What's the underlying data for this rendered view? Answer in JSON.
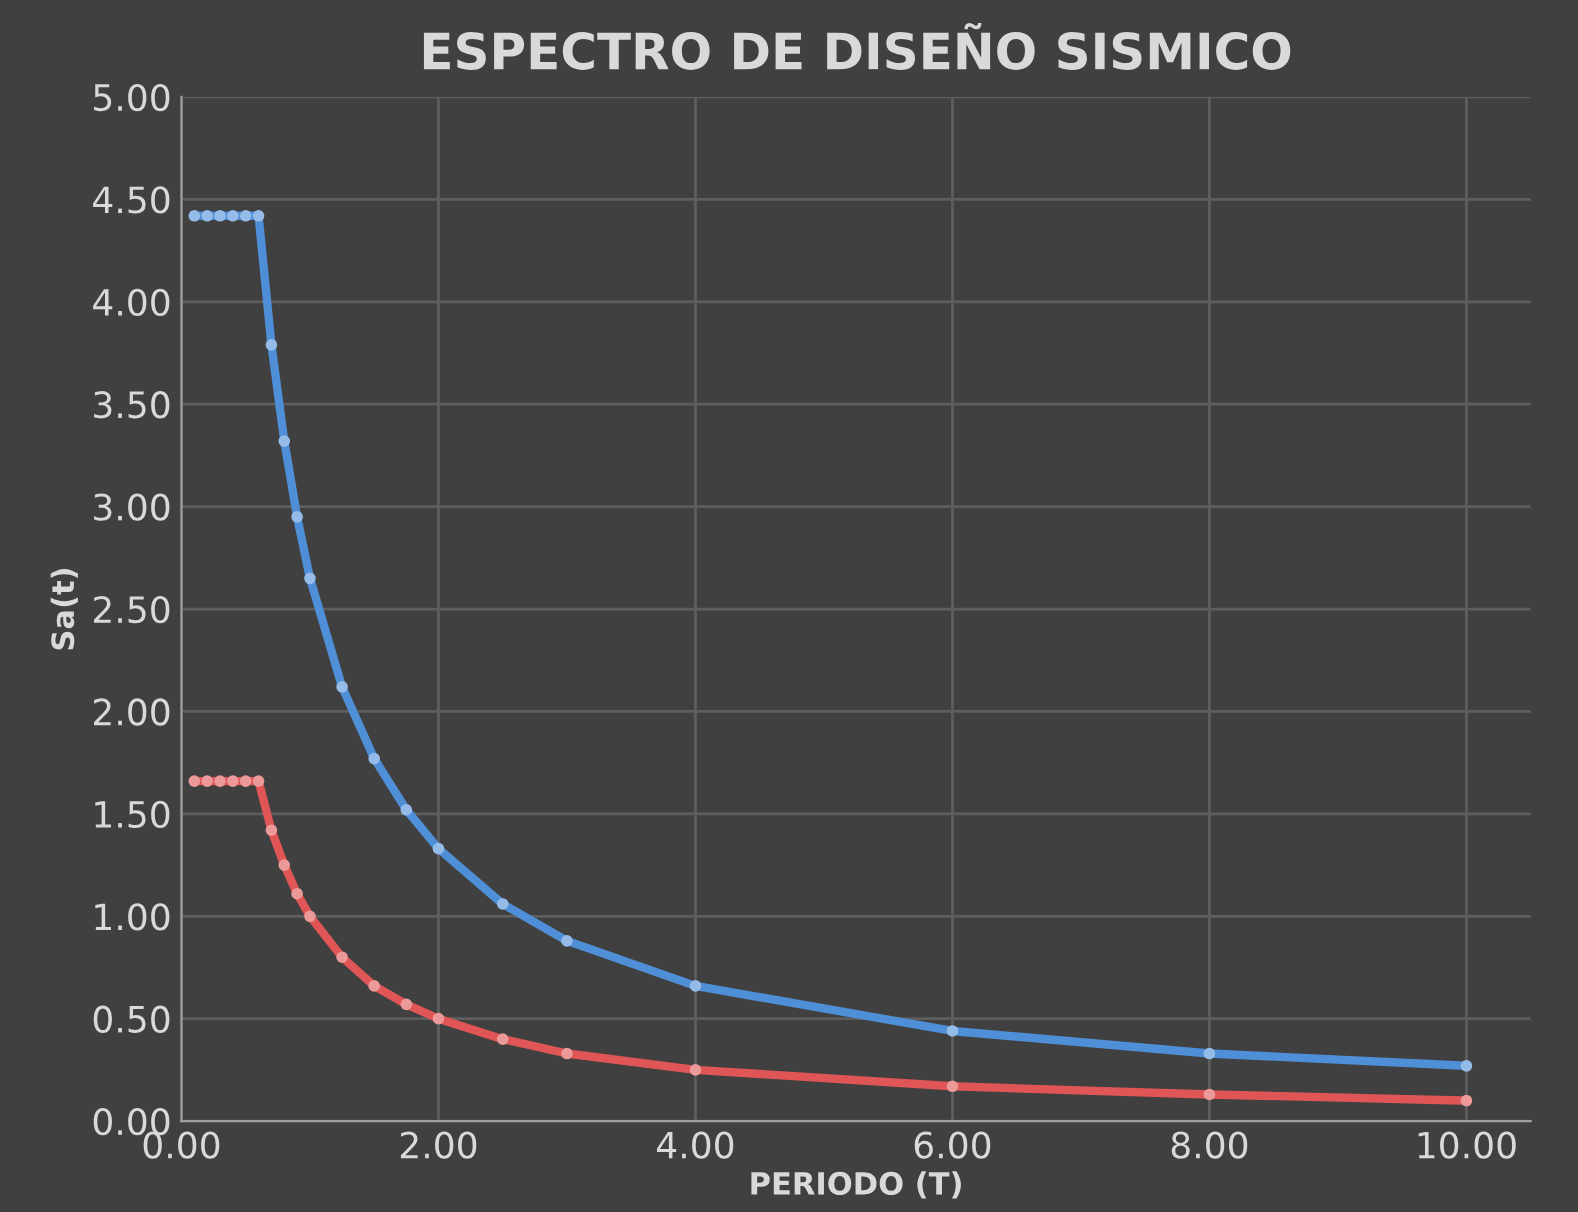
{
  "chart_data": {
    "type": "line",
    "title": "ESPECTRO DE DISEÑO SISMICO",
    "xlabel": "PERIODO (T)",
    "ylabel": "Sa(t)",
    "xlim": [
      0,
      10.5
    ],
    "xticks": [
      {
        "value": 0,
        "label": "0.00"
      },
      {
        "value": 2,
        "label": "2.00"
      },
      {
        "value": 4,
        "label": "4.00"
      },
      {
        "value": 6,
        "label": "6.00"
      },
      {
        "value": 8,
        "label": "8.00"
      },
      {
        "value": 10,
        "label": "10.00"
      }
    ],
    "ylim": [
      0,
      5
    ],
    "yticks": [
      {
        "value": 0,
        "label": "0.00"
      },
      {
        "value": 0.5,
        "label": "0.50"
      },
      {
        "value": 1,
        "label": "1.00"
      },
      {
        "value": 1.5,
        "label": "1.50"
      },
      {
        "value": 2,
        "label": "2.00"
      },
      {
        "value": 2.5,
        "label": "2.50"
      },
      {
        "value": 3,
        "label": "3.00"
      },
      {
        "value": 3.5,
        "label": "3.50"
      },
      {
        "value": 4,
        "label": "4.00"
      },
      {
        "value": 4.5,
        "label": "4.50"
      },
      {
        "value": 5,
        "label": "5.00"
      }
    ],
    "grid": true,
    "marker": "circle",
    "line_style": "solid",
    "x": [
      0.1,
      0.2,
      0.3,
      0.4,
      0.5,
      0.6,
      0.7,
      0.8,
      0.9,
      1.0,
      1.25,
      1.5,
      1.75,
      2.0,
      2.5,
      3.0,
      4.0,
      6.0,
      8.0,
      10.0
    ],
    "series": [
      {
        "color": "#4f8fd8",
        "values": [
          4.42,
          4.42,
          4.42,
          4.42,
          4.42,
          4.42,
          3.79,
          3.32,
          2.95,
          2.65,
          2.12,
          1.77,
          1.52,
          1.33,
          1.06,
          0.88,
          0.66,
          0.44,
          0.33,
          0.27
        ]
      },
      {
        "color": "#e05555",
        "values": [
          1.66,
          1.66,
          1.66,
          1.66,
          1.66,
          1.66,
          1.42,
          1.25,
          1.11,
          1.0,
          0.8,
          0.66,
          0.57,
          0.5,
          0.4,
          0.33,
          0.25,
          0.17,
          0.13,
          0.1
        ]
      }
    ]
  }
}
